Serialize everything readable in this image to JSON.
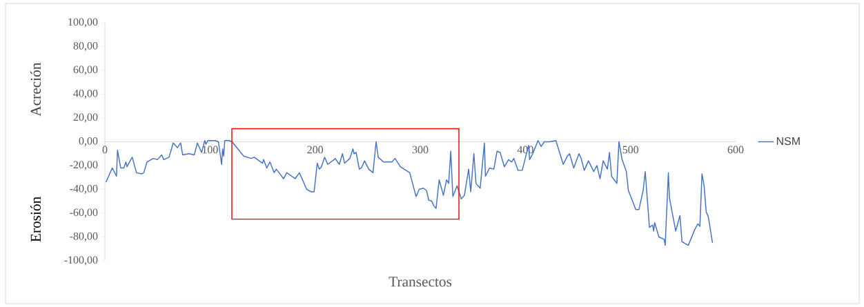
{
  "chart_data": {
    "type": "line",
    "xlabel": "Transectos",
    "ylabel": "Acreción",
    "annotations": [
      "Erosión"
    ],
    "xlim": [
      0,
      600
    ],
    "ylim": [
      -100,
      100
    ],
    "xticks": [
      0,
      100,
      200,
      300,
      400,
      500,
      600
    ],
    "yticks": [
      {
        "value": -100,
        "label": "-100,00"
      },
      {
        "value": -80,
        "label": "-80,00"
      },
      {
        "value": -60,
        "label": "-60,00"
      },
      {
        "value": -40,
        "label": "-40,00"
      },
      {
        "value": -20,
        "label": "-20,00"
      },
      {
        "value": 0,
        "label": "0,00"
      },
      {
        "value": 20,
        "label": "20,00"
      },
      {
        "value": 40,
        "label": "40,00"
      },
      {
        "value": 60,
        "label": "60,00"
      },
      {
        "value": 80,
        "label": "80,00"
      },
      {
        "value": 100,
        "label": "100,00"
      }
    ],
    "legend": "right",
    "marker": "none",
    "line_style": "solid",
    "series": [
      {
        "name": "NSM",
        "color": "#4472c4",
        "x": [
          1,
          7,
          11,
          12,
          15,
          18,
          20,
          21,
          24,
          26,
          30,
          35,
          37,
          40,
          46,
          50,
          54,
          56,
          61,
          65,
          69,
          72,
          74,
          80,
          85,
          88,
          92,
          95,
          96,
          98,
          103,
          105,
          108,
          111,
          112,
          113,
          114,
          118,
          121,
          132,
          139,
          142,
          150,
          151,
          154,
          157,
          161,
          163,
          170,
          173,
          181,
          185,
          192,
          196,
          199,
          202,
          204,
          206,
          209,
          212,
          218,
          219,
          223,
          226,
          228,
          233,
          236,
          237,
          239,
          242,
          244,
          247,
          251,
          255,
          258,
          260,
          265,
          273,
          276,
          281,
          290,
          296,
          299,
          303,
          306,
          308,
          311,
          313,
          315,
          318,
          322,
          325,
          327,
          329,
          331,
          335,
          339,
          342,
          346,
          348,
          351,
          353,
          357,
          361,
          362,
          366,
          370,
          373,
          376,
          380,
          384,
          387,
          389,
          393,
          397,
          403,
          404,
          407,
          412,
          415,
          418,
          423,
          429,
          436,
          440,
          442,
          446,
          451,
          453,
          456,
          460,
          465,
          468,
          471,
          474,
          478,
          480,
          482,
          487,
          489,
          492,
          496,
          498,
          502,
          505,
          508,
          512,
          514,
          518,
          521,
          522,
          523,
          527,
          532,
          533,
          536,
          537,
          543,
          547,
          549,
          555,
          561,
          564,
          566,
          568,
          570,
          572,
          574,
          578
        ],
        "values": [
          -34,
          -22,
          -29,
          -7,
          -22,
          -22,
          -17,
          -21,
          -16,
          -13,
          -26,
          -27,
          -26,
          -17,
          -14,
          -15,
          -11,
          -15,
          -13,
          -1,
          -5,
          -1,
          -11,
          -10,
          -11,
          -1,
          -9,
          1,
          -2,
          1,
          1,
          1,
          0,
          -19,
          -6,
          -12,
          1,
          1,
          0,
          -12,
          -14,
          -13,
          -18,
          -15,
          -22,
          -17,
          -26,
          -23,
          -31,
          -26,
          -31,
          -26,
          -40,
          -42,
          -42,
          -18,
          -23,
          -21,
          -13,
          -19,
          -15,
          -14,
          -19,
          -10,
          -18,
          -14,
          -6,
          -10,
          -9,
          -23,
          -22,
          -16,
          -23,
          -26,
          0,
          -13,
          -17,
          -17,
          -14,
          -21,
          -26,
          -46,
          -40,
          -39,
          -41,
          -49,
          -50,
          -54,
          -56,
          -32,
          -45,
          -32,
          -35,
          -8,
          -46,
          -37,
          -48,
          -45,
          -23,
          -42,
          -10,
          -35,
          -39,
          -1,
          -29,
          -22,
          -23,
          -8,
          -9,
          -21,
          -15,
          -17,
          -14,
          -24,
          -24,
          -3,
          -15,
          -10,
          1,
          -4,
          0,
          0,
          1,
          -19,
          -12,
          -10,
          -22,
          -10,
          -14,
          -24,
          -16,
          -25,
          -20,
          -31,
          -16,
          -23,
          -9,
          -29,
          -35,
          0,
          -15,
          -25,
          -41,
          -50,
          -57,
          -57,
          -41,
          -25,
          -72,
          -70,
          -75,
          -68,
          -80,
          -82,
          -87,
          -26,
          -47,
          -75,
          -62,
          -84,
          -87,
          -74,
          -69,
          -71,
          -27,
          -37,
          -59,
          -63,
          -85
        ]
      }
    ]
  }
}
